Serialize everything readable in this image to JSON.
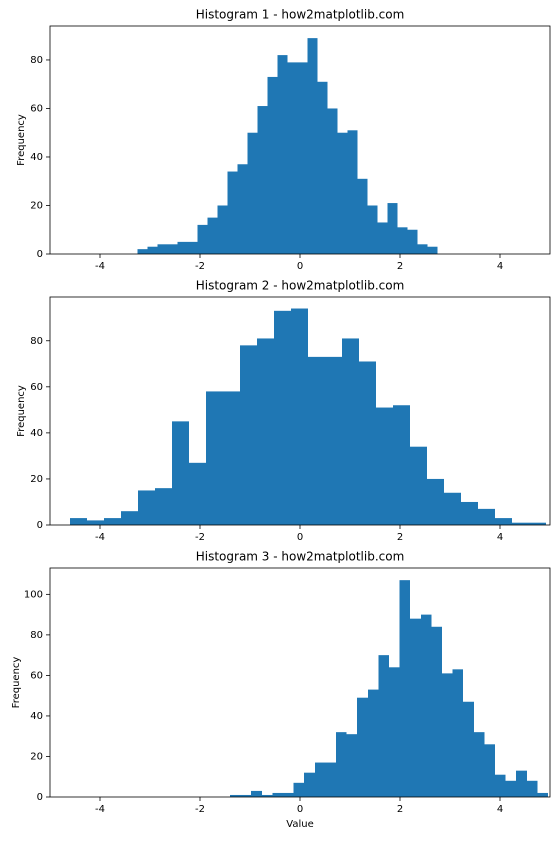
{
  "chart_data": [
    {
      "type": "histogram",
      "title": "Histogram 1 - how2matplotlib.com",
      "ylabel": "Frequency",
      "color": "#1f77b4",
      "bins": [
        -3.25,
        -3.05,
        -2.85,
        -2.65,
        -2.45,
        -2.25,
        -2.05,
        -1.85,
        -1.65,
        -1.45,
        -1.25,
        -1.05,
        -0.85,
        -0.65,
        -0.45,
        -0.25,
        -0.05,
        0.15,
        0.35,
        0.55,
        0.75,
        0.95,
        1.15,
        1.35,
        1.55,
        1.75,
        1.95,
        2.15,
        2.35,
        2.55,
        2.75
      ],
      "counts": [
        2,
        3,
        4,
        4,
        5,
        5,
        12,
        15,
        20,
        34,
        37,
        50,
        61,
        73,
        82,
        79,
        79,
        89,
        71,
        60,
        50,
        51,
        31,
        20,
        13,
        21,
        11,
        10,
        4,
        3
      ],
      "xlim": [
        -5,
        5
      ],
      "xticks": [
        -4,
        -2,
        0,
        2,
        4
      ],
      "ylim": [
        0,
        94
      ],
      "yticks": [
        0,
        20,
        40,
        60,
        80
      ]
    },
    {
      "type": "histogram",
      "title": "Histogram 2 - how2matplotlib.com",
      "ylabel": "Frequency",
      "color": "#1f77b4",
      "bins": [
        -4.6,
        -4.26,
        -3.92,
        -3.58,
        -3.24,
        -2.9,
        -2.56,
        -2.22,
        -1.88,
        -1.54,
        -1.2,
        -0.86,
        -0.52,
        -0.18,
        0.16,
        0.5,
        0.84,
        1.18,
        1.52,
        1.86,
        2.2,
        2.54,
        2.88,
        3.22,
        3.56,
        3.9,
        4.24,
        4.58,
        4.92
      ],
      "counts": [
        3,
        2,
        3,
        6,
        15,
        16,
        45,
        27,
        58,
        58,
        78,
        81,
        93,
        94,
        73,
        73,
        81,
        71,
        51,
        52,
        34,
        20,
        14,
        10,
        7,
        3,
        1,
        1
      ],
      "xlim": [
        -5,
        5
      ],
      "xticks": [
        -4,
        -2,
        0,
        2,
        4
      ],
      "ylim": [
        0,
        99
      ],
      "yticks": [
        0,
        20,
        40,
        60,
        80
      ]
    },
    {
      "type": "histogram",
      "title": "Histogram 3 - how2matplotlib.com",
      "ylabel": "Frequency",
      "xlabel": "Value",
      "color": "#1f77b4",
      "bins": [
        -1.4,
        -1.19,
        -0.98,
        -0.76,
        -0.55,
        -0.34,
        -0.13,
        0.08,
        0.3,
        0.51,
        0.72,
        0.93,
        1.14,
        1.36,
        1.57,
        1.78,
        1.99,
        2.2,
        2.42,
        2.63,
        2.84,
        3.05,
        3.26,
        3.48,
        3.69,
        3.9,
        4.11,
        4.32,
        4.54,
        4.75,
        4.96
      ],
      "counts": [
        1,
        1,
        3,
        1,
        2,
        2,
        7,
        12,
        17,
        17,
        32,
        31,
        49,
        53,
        70,
        64,
        107,
        88,
        90,
        84,
        61,
        63,
        47,
        32,
        26,
        11,
        8,
        13,
        8,
        2
      ],
      "xlim": [
        -5,
        5
      ],
      "xticks": [
        -4,
        -2,
        0,
        2,
        4
      ],
      "ylim": [
        0,
        113
      ],
      "yticks": [
        0,
        20,
        40,
        60,
        80,
        100
      ]
    }
  ]
}
